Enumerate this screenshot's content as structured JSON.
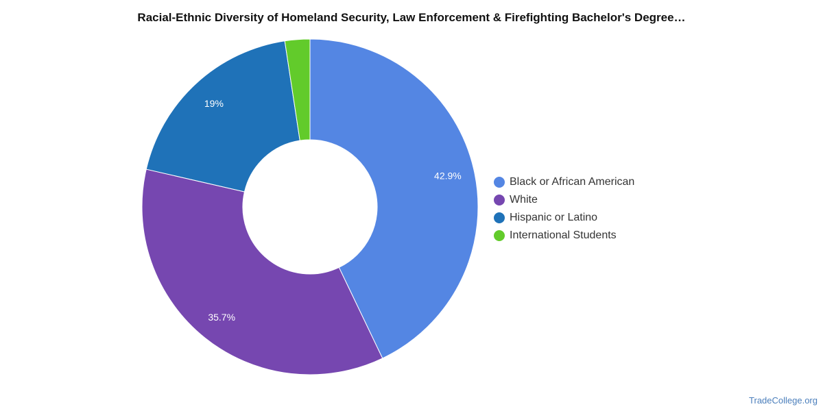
{
  "chart_data": {
    "type": "pie",
    "style": "donut",
    "title": "Racial-Ethnic Diversity of Homeland Security, Law Enforcement & Firefighting Bachelor's Degree…",
    "slices": [
      {
        "label": "Black or African American",
        "value": 42.9,
        "display": "42.9%",
        "color": "#5486e3"
      },
      {
        "label": "White",
        "value": 35.7,
        "display": "35.7%",
        "color": "#7647b0"
      },
      {
        "label": "Hispanic or Latino",
        "value": 19.0,
        "display": "19%",
        "color": "#1f72b8"
      },
      {
        "label": "International Students",
        "value": 2.4,
        "display": "",
        "color": "#62cb2b"
      }
    ],
    "legend_position": "right"
  },
  "footer": {
    "credit": "TradeCollege.org"
  }
}
